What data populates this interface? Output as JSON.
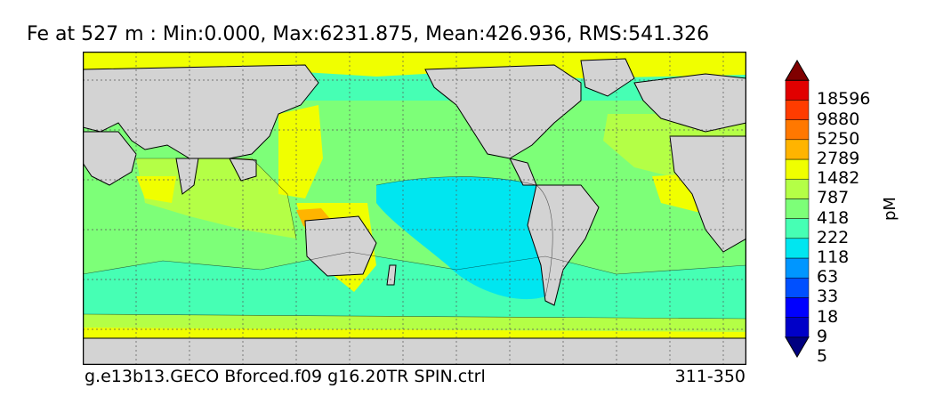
{
  "title": "Fe at 527 m : Min:0.000, Max:6231.875, Mean:426.936, RMS:541.326",
  "footer": {
    "left": "g.e13b13.GECO Bforced.f09 g16.20TR SPIN.ctrl",
    "right": "311-350"
  },
  "colorbar": {
    "unit": "pM",
    "labels": [
      "18596",
      "9880",
      "5250",
      "2789",
      "1482",
      "787",
      "418",
      "222",
      "118",
      "63",
      "33",
      "18",
      "9",
      "5"
    ],
    "colors": [
      "#000080",
      "#0000c8",
      "#0000ff",
      "#0050ff",
      "#0096ff",
      "#00e6f0",
      "#46ffb4",
      "#7dff78",
      "#b4ff46",
      "#f0ff00",
      "#ffb400",
      "#ff7800",
      "#ff3c00",
      "#e10000",
      "#800000"
    ]
  },
  "colors": {
    "land": "#d3d3d3",
    "cyan": "#00e6f0",
    "mint": "#46ffb4",
    "green": "#7dff78",
    "lime": "#b4ff46",
    "yellow": "#f0ff00",
    "orange": "#ffb400"
  }
}
